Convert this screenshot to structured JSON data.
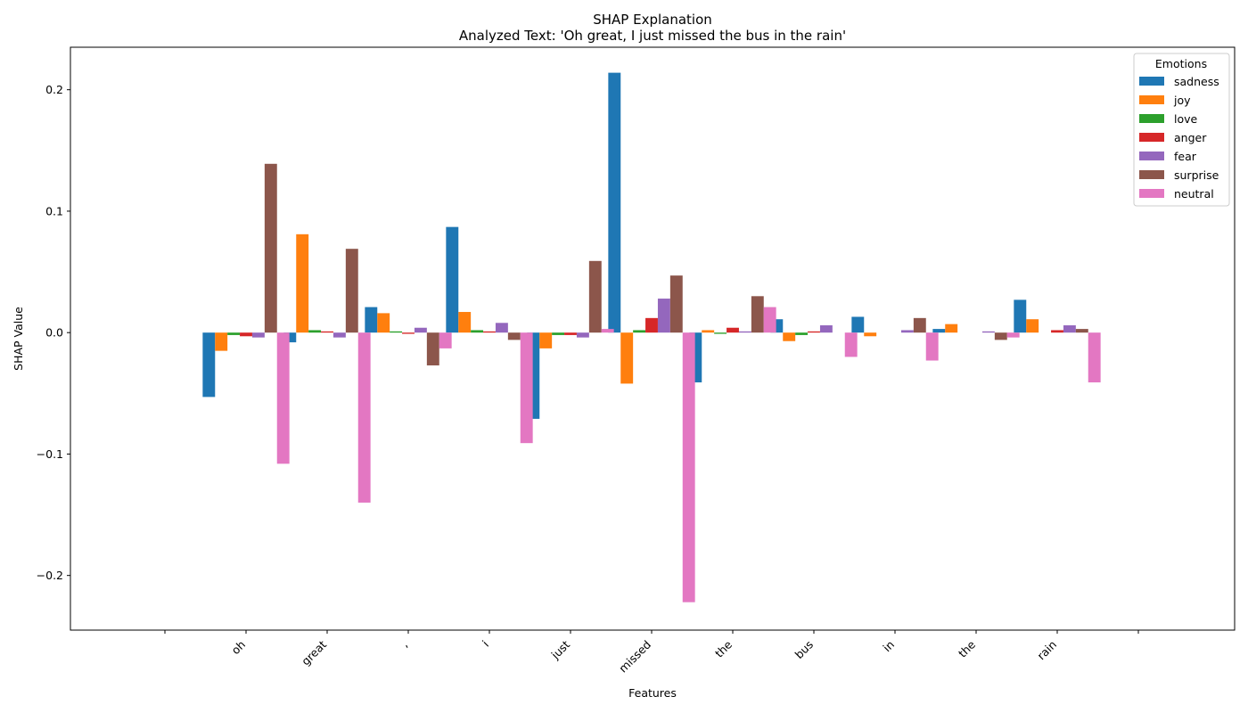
{
  "chart_data": {
    "type": "bar",
    "title": "SHAP Explanation",
    "subtitle": "Analyzed Text: 'Oh great, I just missed the bus in the rain'",
    "xlabel": "Features",
    "ylabel": "SHAP Value",
    "ylim": [
      -0.245,
      0.235
    ],
    "yticks": [
      -0.2,
      -0.1,
      0.0,
      0.1,
      0.2
    ],
    "ytick_labels": [
      "−0.2",
      "−0.1",
      "0.0",
      "0.1",
      "0.2"
    ],
    "grid": false,
    "legend": {
      "title": "Emotions",
      "position": "top-right"
    },
    "categories": [
      "",
      "oh",
      "great",
      ",",
      "i",
      "just",
      "missed",
      "the",
      "bus",
      "in",
      "the",
      "rain",
      ""
    ],
    "series": [
      {
        "name": "sadness",
        "color": "#1f77b4",
        "values": [
          0,
          -0.053,
          -0.008,
          0.021,
          0.087,
          -0.071,
          0.214,
          -0.041,
          0.011,
          0.013,
          0.003,
          0.027,
          0
        ]
      },
      {
        "name": "joy",
        "color": "#ff7f0e",
        "values": [
          0,
          -0.015,
          0.081,
          0.016,
          0.017,
          -0.013,
          -0.042,
          0.002,
          -0.007,
          -0.003,
          0.007,
          0.011,
          0
        ]
      },
      {
        "name": "love",
        "color": "#2ca02c",
        "values": [
          0,
          -0.002,
          0.002,
          0.001,
          0.002,
          -0.002,
          0.002,
          -0.001,
          -0.002,
          0.0,
          0.0,
          0.0,
          0
        ]
      },
      {
        "name": "anger",
        "color": "#d62728",
        "values": [
          0,
          -0.003,
          0.001,
          -0.001,
          0.001,
          -0.002,
          0.012,
          0.004,
          0.001,
          0.0,
          0.0,
          0.002,
          0
        ]
      },
      {
        "name": "fear",
        "color": "#9467bd",
        "values": [
          0,
          -0.004,
          -0.004,
          0.004,
          0.008,
          -0.004,
          0.028,
          0.001,
          0.006,
          0.002,
          0.001,
          0.006,
          0
        ]
      },
      {
        "name": "surprise",
        "color": "#8c564b",
        "values": [
          0,
          0.139,
          0.069,
          -0.027,
          -0.006,
          0.059,
          0.047,
          0.03,
          0.0,
          0.012,
          -0.006,
          0.003,
          0
        ]
      },
      {
        "name": "neutral",
        "color": "#e377c2",
        "values": [
          0,
          -0.108,
          -0.14,
          -0.013,
          -0.091,
          0.003,
          -0.222,
          0.021,
          -0.02,
          -0.023,
          -0.004,
          -0.041,
          0
        ]
      }
    ]
  }
}
